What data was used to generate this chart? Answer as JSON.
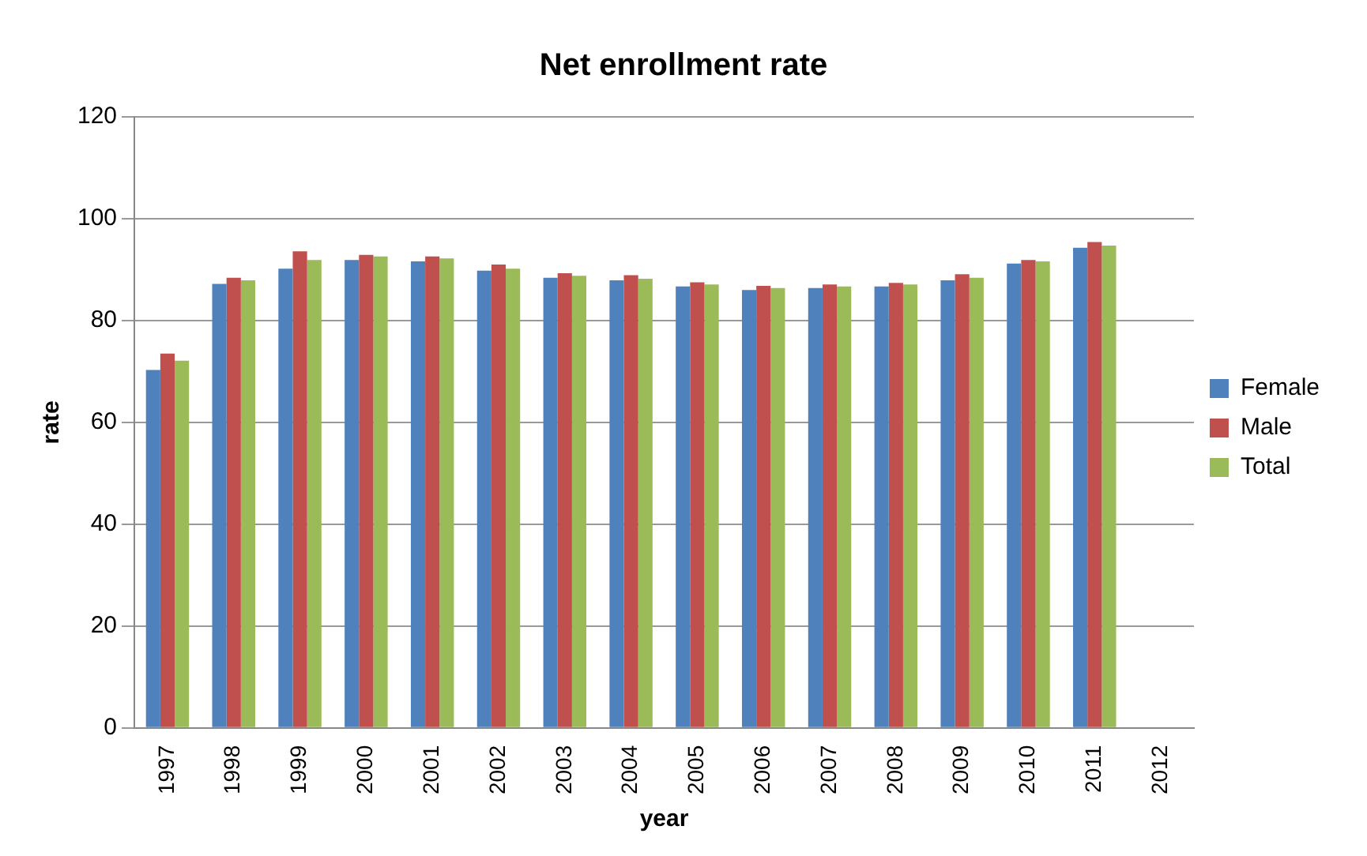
{
  "chart_data": {
    "type": "bar",
    "title": "Net enrollment rate",
    "xlabel": "year",
    "ylabel": "rate",
    "categories": [
      "1997",
      "1998",
      "1999",
      "2000",
      "2001",
      "2002",
      "2003",
      "2004",
      "2005",
      "2006",
      "2007",
      "2008",
      "2009",
      "2010",
      "2011",
      "2012"
    ],
    "series": [
      {
        "name": "Female",
        "color": "#4f81bd",
        "values": [
          70.3,
          87.2,
          90.2,
          91.9,
          91.6,
          89.8,
          88.4,
          87.9,
          86.7,
          86.0,
          86.4,
          86.7,
          87.9,
          91.2,
          94.3,
          null
        ]
      },
      {
        "name": "Male",
        "color": "#c0504d",
        "values": [
          73.5,
          88.4,
          93.6,
          92.9,
          92.6,
          91.0,
          89.3,
          88.9,
          87.5,
          86.8,
          87.1,
          87.4,
          89.1,
          91.9,
          95.4,
          null
        ]
      },
      {
        "name": "Total",
        "color": "#9bbb59",
        "values": [
          72.1,
          87.9,
          91.9,
          92.6,
          92.2,
          90.2,
          88.8,
          88.2,
          87.1,
          86.4,
          86.7,
          87.1,
          88.4,
          91.6,
          94.7,
          null
        ]
      }
    ],
    "ylim": [
      0,
      120
    ],
    "yticks": [
      0,
      20,
      40,
      60,
      80,
      100,
      120
    ],
    "grid": "y",
    "legend": "right"
  }
}
